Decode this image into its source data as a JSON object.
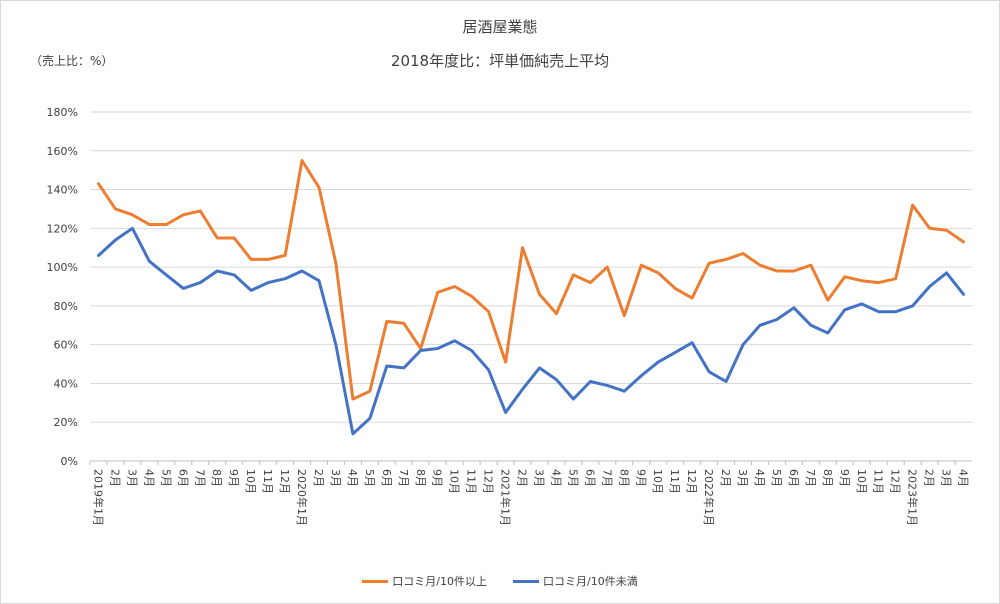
{
  "chart_data": {
    "type": "line",
    "title": "居酒屋業態",
    "subtitle": "2018年度比：坪単価純売上平均",
    "ylabel": "（売上比：%）",
    "ylim": [
      0,
      180
    ],
    "yticks": [
      "0%",
      "20%",
      "40%",
      "60%",
      "80%",
      "100%",
      "120%",
      "140%",
      "160%",
      "180%"
    ],
    "grid": true,
    "legend_position": "bottom",
    "categories": [
      "2019年1月",
      "2月",
      "3月",
      "4月",
      "5月",
      "6月",
      "7月",
      "8月",
      "9月",
      "10月",
      "11月",
      "12月",
      "2020年1月",
      "2月",
      "3月",
      "4月",
      "5月",
      "6月",
      "7月",
      "8月",
      "9月",
      "10月",
      "11月",
      "12月",
      "2021年1月",
      "2月",
      "3月",
      "4月",
      "5月",
      "6月",
      "7月",
      "8月",
      "9月",
      "10月",
      "11月",
      "12月",
      "2022年1月",
      "2月",
      "3月",
      "4月",
      "5月",
      "6月",
      "7月",
      "8月",
      "9月",
      "10月",
      "11月",
      "12月",
      "2023年1月",
      "2月",
      "3月",
      "4月"
    ],
    "series": [
      {
        "name": "口コミ月/10件以上",
        "color": "#ed7d31",
        "values": [
          143,
          130,
          127,
          122,
          122,
          127,
          129,
          115,
          115,
          104,
          104,
          106,
          155,
          141,
          102,
          32,
          36,
          72,
          71,
          58,
          87,
          90,
          85,
          77,
          51,
          110,
          86,
          76,
          96,
          92,
          100,
          75,
          101,
          97,
          89,
          84,
          102,
          104,
          107,
          101,
          98,
          98,
          101,
          83,
          95,
          93,
          92,
          94,
          132,
          120,
          119,
          113
        ]
      },
      {
        "name": "口コミ月/10件未満",
        "color": "#4472c4",
        "values": [
          106,
          114,
          120,
          103,
          96,
          89,
          92,
          98,
          96,
          88,
          92,
          94,
          98,
          93,
          60,
          14,
          22,
          49,
          48,
          57,
          58,
          62,
          57,
          47,
          25,
          37,
          48,
          42,
          32,
          41,
          39,
          36,
          44,
          51,
          56,
          61,
          46,
          41,
          60,
          70,
          73,
          79,
          70,
          66,
          78,
          81,
          77,
          77,
          80,
          90,
          97,
          86
        ]
      }
    ]
  }
}
